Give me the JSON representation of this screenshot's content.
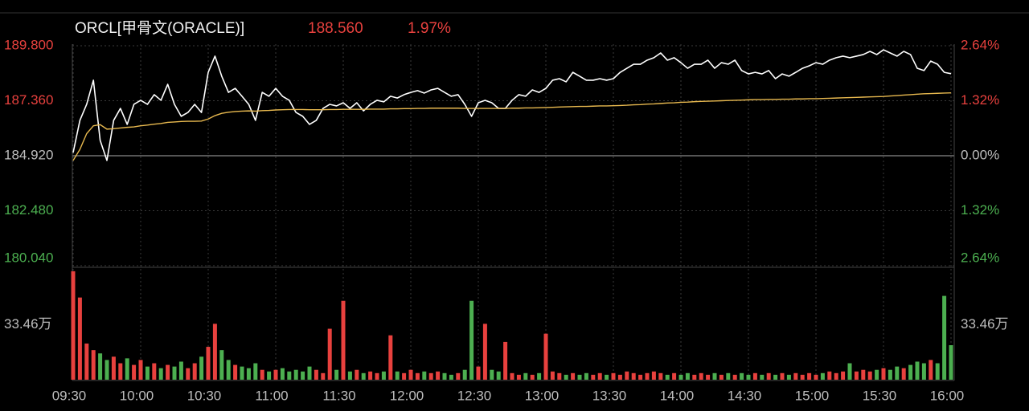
{
  "chart_data": {
    "type": "line",
    "title": "ORCL[甲骨文(ORACLE)]",
    "quote": {
      "price": "188.560",
      "change": "1.97%"
    },
    "up_color": "#e8413e",
    "down_color": "#4caf50",
    "flat_color": "#bdbdbd",
    "grid": true,
    "xlim": [
      0,
      390
    ],
    "xticks": [
      {
        "value": 0,
        "label": "09:30"
      },
      {
        "value": 30,
        "label": "10:00"
      },
      {
        "value": 60,
        "label": "10:30"
      },
      {
        "value": 90,
        "label": "11:00"
      },
      {
        "value": 120,
        "label": "11:30"
      },
      {
        "value": 150,
        "label": "12:00"
      },
      {
        "value": 180,
        "label": "12:30"
      },
      {
        "value": 210,
        "label": "13:00"
      },
      {
        "value": 240,
        "label": "13:30"
      },
      {
        "value": 270,
        "label": "14:00"
      },
      {
        "value": 300,
        "label": "14:30"
      },
      {
        "value": 330,
        "label": "15:00"
      },
      {
        "value": 360,
        "label": "15:30"
      },
      {
        "value": 390,
        "label": "16:00"
      }
    ],
    "ylim": [
      180.04,
      189.8
    ],
    "yticks": [
      {
        "value": 189.8,
        "label": "189.800"
      },
      {
        "value": 187.36,
        "label": "187.360"
      },
      {
        "value": 184.92,
        "label": "184.920"
      },
      {
        "value": 182.48,
        "label": "182.480"
      },
      {
        "value": 180.04,
        "label": "180.040"
      }
    ],
    "y2lim": [
      -2.64,
      2.64
    ],
    "y2ticks": [
      {
        "value": 2.64,
        "label": "2.64%"
      },
      {
        "value": 1.32,
        "label": "1.32%"
      },
      {
        "value": 0,
        "label": "0.00%"
      },
      {
        "value": -1.32,
        "label": "1.32%"
      },
      {
        "value": -2.64,
        "label": "2.64%"
      }
    ],
    "x": [
      0,
      3,
      6,
      9,
      12,
      15,
      18,
      21,
      24,
      27,
      30,
      33,
      36,
      39,
      42,
      45,
      48,
      51,
      54,
      57,
      60,
      63,
      66,
      69,
      72,
      75,
      78,
      81,
      84,
      87,
      90,
      93,
      96,
      99,
      102,
      105,
      108,
      111,
      114,
      117,
      120,
      123,
      126,
      129,
      132,
      135,
      138,
      141,
      144,
      147,
      150,
      153,
      156,
      159,
      162,
      165,
      168,
      171,
      174,
      177,
      180,
      183,
      186,
      189,
      192,
      195,
      198,
      201,
      204,
      207,
      210,
      213,
      216,
      219,
      222,
      225,
      228,
      231,
      234,
      237,
      240,
      243,
      246,
      249,
      252,
      255,
      258,
      261,
      264,
      267,
      270,
      273,
      276,
      279,
      282,
      285,
      288,
      291,
      294,
      297,
      300,
      303,
      306,
      309,
      312,
      315,
      318,
      321,
      324,
      327,
      330,
      333,
      336,
      339,
      342,
      345,
      348,
      351,
      354,
      357,
      360,
      363,
      366,
      369,
      372,
      375,
      378,
      381,
      384,
      387,
      390
    ],
    "series": [
      {
        "color": "#ffffff",
        "values": [
          185.06,
          186.49,
          187.2,
          188.27,
          185.6,
          184.71,
          186.49,
          187.02,
          186.31,
          187.2,
          187.38,
          187.2,
          187.63,
          187.38,
          188.09,
          187.2,
          186.67,
          186.84,
          187.2,
          186.84,
          188.62,
          189.34,
          188.45,
          187.73,
          187.91,
          187.56,
          187.2,
          186.49,
          187.73,
          187.56,
          187.91,
          187.56,
          187.38,
          186.84,
          186.67,
          186.31,
          186.49,
          187.02,
          187.2,
          187.13,
          187.27,
          187.02,
          187.27,
          186.91,
          187.2,
          187.38,
          187.31,
          187.56,
          187.48,
          187.63,
          187.73,
          187.81,
          187.7,
          187.84,
          187.91,
          187.73,
          187.56,
          187.63,
          187.2,
          186.67,
          187.27,
          187.38,
          187.27,
          187.02,
          187.02,
          187.38,
          187.63,
          187.56,
          187.84,
          187.73,
          187.91,
          188.27,
          188.34,
          188.2,
          188.62,
          188.45,
          188.27,
          188.27,
          188.34,
          188.27,
          188.34,
          188.62,
          188.8,
          188.98,
          188.98,
          189.16,
          189.27,
          189.48,
          189.16,
          189.27,
          189.05,
          188.8,
          188.98,
          188.98,
          189.16,
          188.8,
          189.05,
          188.98,
          189.16,
          188.7,
          188.55,
          188.62,
          188.55,
          188.7,
          188.34,
          188.55,
          188.45,
          188.62,
          188.8,
          188.91,
          189.05,
          188.98,
          189.16,
          189.27,
          189.34,
          189.27,
          189.34,
          189.41,
          189.55,
          189.41,
          189.62,
          189.48,
          189.34,
          189.55,
          189.41,
          188.8,
          188.7,
          189.12,
          188.98,
          188.62,
          188.56
        ]
      },
      {
        "color": "#e8b94f",
        "values": [
          184.71,
          185.2,
          185.9,
          186.25,
          186.3,
          186.1,
          186.12,
          186.15,
          186.18,
          186.2,
          186.25,
          186.28,
          186.32,
          186.35,
          186.4,
          186.42,
          186.44,
          186.45,
          186.45,
          186.46,
          186.55,
          186.7,
          186.8,
          186.85,
          186.88,
          186.9,
          186.91,
          186.9,
          186.92,
          186.93,
          186.95,
          186.96,
          186.97,
          186.97,
          186.97,
          186.96,
          186.96,
          186.96,
          186.97,
          186.97,
          186.98,
          186.98,
          186.98,
          186.98,
          186.99,
          186.99,
          186.99,
          187.0,
          187.0,
          187.01,
          187.01,
          187.02,
          187.02,
          187.03,
          187.03,
          187.03,
          187.03,
          187.03,
          187.02,
          187.02,
          187.02,
          187.02,
          187.02,
          187.02,
          187.02,
          187.03,
          187.03,
          187.04,
          187.04,
          187.05,
          187.06,
          187.07,
          187.08,
          187.09,
          187.1,
          187.11,
          187.11,
          187.12,
          187.13,
          187.13,
          187.14,
          187.15,
          187.16,
          187.18,
          187.19,
          187.21,
          187.22,
          187.24,
          187.26,
          187.27,
          187.29,
          187.3,
          187.32,
          187.33,
          187.34,
          187.35,
          187.36,
          187.37,
          187.38,
          187.39,
          187.4,
          187.41,
          187.41,
          187.42,
          187.42,
          187.43,
          187.43,
          187.44,
          187.44,
          187.45,
          187.45,
          187.46,
          187.47,
          187.48,
          187.49,
          187.5,
          187.51,
          187.52,
          187.53,
          187.54,
          187.55,
          187.57,
          187.59,
          187.61,
          187.63,
          187.65,
          187.67,
          187.68,
          187.69,
          187.7,
          187.71
        ]
      }
    ],
    "volume": {
      "ylim": [
        0,
        66.92
      ],
      "yticks": [
        {
          "value": 33.46,
          "label": "33.46万"
        }
      ],
      "values": [
        66,
        50,
        22,
        18,
        16,
        12,
        14,
        10,
        13,
        9,
        12,
        8,
        10,
        7,
        9,
        8,
        11,
        7,
        10,
        14,
        20,
        34,
        18,
        12,
        9,
        8,
        7,
        10,
        6,
        5,
        6,
        7,
        5,
        6,
        5,
        8,
        6,
        4,
        31,
        6,
        48,
        5,
        6,
        4,
        5,
        4,
        5,
        27,
        5,
        4,
        6,
        4,
        5,
        4,
        5,
        4,
        3,
        4,
        6,
        48,
        8,
        34,
        6,
        5,
        23,
        4,
        3,
        4,
        3,
        4,
        28,
        5,
        4,
        3,
        4,
        3,
        4,
        3,
        4,
        3,
        4,
        3,
        5,
        4,
        3,
        4,
        5,
        4,
        3,
        4,
        3,
        4,
        3,
        4,
        3,
        4,
        3,
        4,
        3,
        4,
        3,
        4,
        3,
        4,
        3,
        4,
        3,
        4,
        3,
        4,
        3,
        4,
        5,
        4,
        5,
        10,
        5,
        6,
        5,
        6,
        7,
        6,
        8,
        7,
        9,
        11,
        10,
        12,
        10,
        51,
        21
      ]
    }
  }
}
